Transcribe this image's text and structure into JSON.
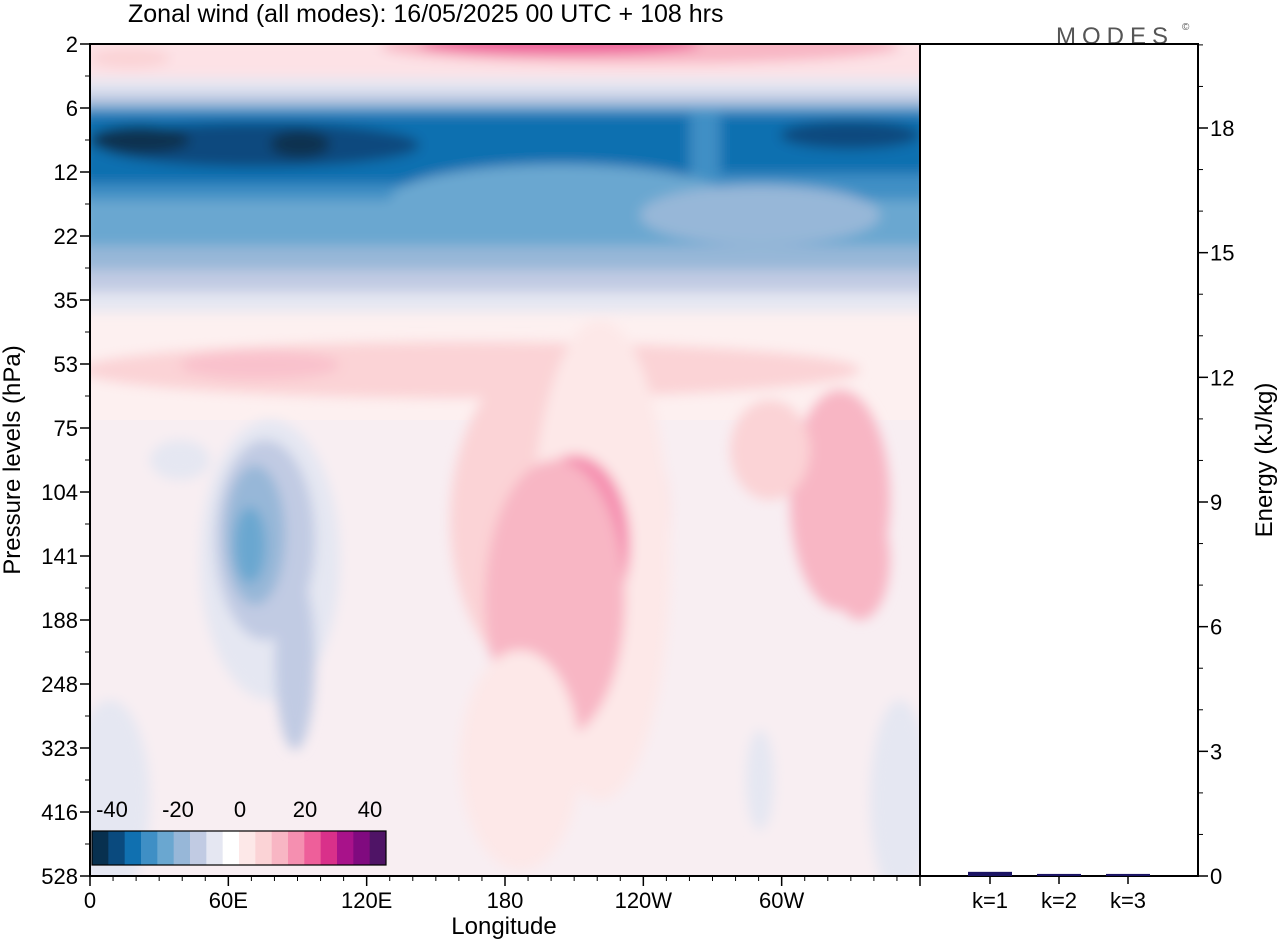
{
  "title": "Zonal wind (all modes):  16/05/2025  00 UTC  + 108 hrs",
  "brand": "MODES",
  "brand_mark": "©",
  "chart_data": [
    {
      "type": "heatmap",
      "title": "Zonal wind (all modes):  16/05/2025  00 UTC  + 108 hrs",
      "xlabel": "Longitude",
      "ylabel": "Pressure levels (hPa)",
      "x_ticks": [
        {
          "lon": 0,
          "label": "0"
        },
        {
          "lon": 60,
          "label": "60E"
        },
        {
          "lon": 120,
          "label": "120E"
        },
        {
          "lon": 180,
          "label": "180"
        },
        {
          "lon": 240,
          "label": "120W"
        },
        {
          "lon": 300,
          "label": "60W"
        }
      ],
      "xlim": [
        0,
        360
      ],
      "y_levels": [
        "2",
        "6",
        "12",
        "22",
        "35",
        "53",
        "75",
        "104",
        "141",
        "188",
        "248",
        "323",
        "416",
        "528"
      ],
      "y_scale": "pressure levels (top = 2 hPa, bottom = 528 hPa)",
      "colorbar": {
        "labels": [
          "-40",
          "-20",
          "0",
          "20",
          "40"
        ],
        "min": -45,
        "max": 45,
        "step": 5,
        "colors": [
          "#08304f",
          "#0a4a7e",
          "#1070b0",
          "#3f8fc5",
          "#6aa7d0",
          "#97b7d8",
          "#c1cbe3",
          "#e5e7f2",
          "#ffffff",
          "#fde8e8",
          "#fbd3d6",
          "#f8b6c4",
          "#f58fb0",
          "#ee5f9a",
          "#d9308a",
          "#a8128a",
          "#800a7f",
          "#4f1466"
        ]
      },
      "regions": [
        {
          "feature": "upper stratosphere easterly jet",
          "pressure_range_hPa": [
            6,
            22
          ],
          "u_m_s": -30
        },
        {
          "feature": "upper westerly band",
          "pressure_range_hPa": [
            2,
            4
          ],
          "u_m_s": 20
        },
        {
          "feature": "central pacific westerly maximum",
          "lon_range": [
            190,
            230
          ],
          "pressure_range_hPa": [
            90,
            190
          ],
          "u_m_s": 15
        },
        {
          "feature": "indian ocean easterly",
          "lon_range": [
            55,
            90
          ],
          "pressure_range_hPa": [
            90,
            300
          ],
          "u_m_s": -15
        }
      ],
      "grid": false
    },
    {
      "type": "bar",
      "ylabel": "Energy (kJ/kg)",
      "categories": [
        "k=1",
        "k=2",
        "k=3"
      ],
      "values": [
        0.1,
        0.05,
        0.05
      ],
      "ylim": [
        0,
        20
      ],
      "y_ticks": [
        "0",
        "3",
        "6",
        "9",
        "12",
        "15",
        "18"
      ],
      "y_tick_values": [
        0,
        3,
        6,
        9,
        12,
        15,
        18
      ],
      "bar_color": "#1b1464"
    }
  ]
}
